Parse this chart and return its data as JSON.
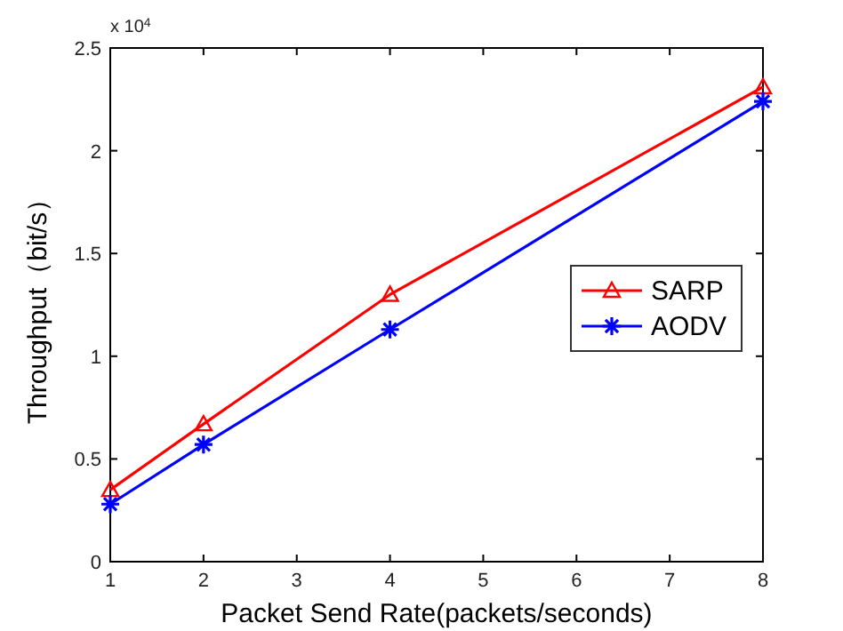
{
  "chart_data": {
    "type": "line",
    "xlabel": "Packet Send Rate(packets/seconds)",
    "ylabel": "Throughput（bit/s）",
    "x": [
      1,
      2,
      4,
      8
    ],
    "series": [
      {
        "name": "SARP",
        "color": "#ff0000",
        "values": [
          0.35,
          0.67,
          1.3,
          2.31
        ],
        "marker": "triangle"
      },
      {
        "name": "AODV",
        "color": "#0000ff",
        "values": [
          0.28,
          0.57,
          1.13,
          2.24
        ],
        "marker": "cross"
      }
    ],
    "xlim": [
      1,
      8
    ],
    "xticks": [
      1,
      2,
      3,
      4,
      5,
      6,
      7,
      8
    ],
    "ylim": [
      0,
      2.5
    ],
    "yticks": [
      0,
      0.5,
      1,
      1.5,
      2,
      2.5
    ],
    "annotations": [
      "x 10$^{4}$"
    ],
    "legend": "right",
    "grid": false,
    "line_style": "solid"
  }
}
